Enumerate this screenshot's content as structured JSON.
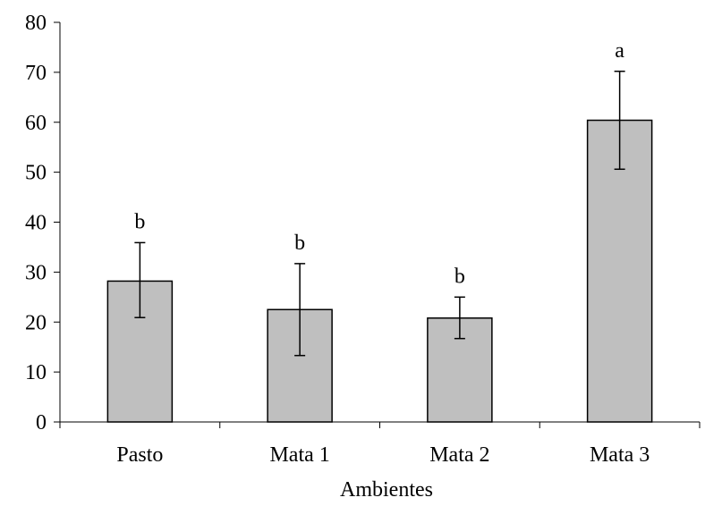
{
  "chart_data": {
    "type": "bar",
    "title": "",
    "xlabel": "Ambientes",
    "ylabel": "",
    "categories": [
      "Pasto",
      "Mata 1",
      "Mata 2",
      "Mata 3"
    ],
    "values": [
      28.2,
      22.5,
      20.8,
      60.4
    ],
    "error_high": [
      35.9,
      31.7,
      25.0,
      70.2
    ],
    "error_low": [
      20.9,
      13.3,
      16.7,
      50.6
    ],
    "significance_letters": [
      "b",
      "b",
      "b",
      "a"
    ],
    "ylim": [
      0,
      80
    ],
    "yticks": [
      0,
      10,
      20,
      30,
      40,
      50,
      60,
      70,
      80
    ],
    "ytick_labels": [
      "0",
      "10",
      "20",
      "30",
      "40",
      "50",
      "60",
      "70",
      "80"
    ],
    "grid": false,
    "legend": "none",
    "bar_color": "#bfbfbf",
    "bar_edge_color": "#000000"
  }
}
